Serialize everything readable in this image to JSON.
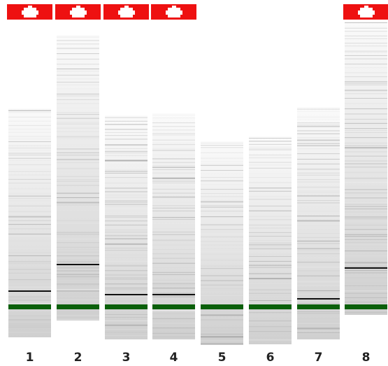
{
  "lanes": [
    {
      "label": "1"
    },
    {
      "label": "2"
    },
    {
      "label": "3"
    },
    {
      "label": "4"
    },
    {
      "label": "5"
    },
    {
      "label": "6"
    },
    {
      "label": "7"
    },
    {
      "label": "8"
    }
  ]
}
